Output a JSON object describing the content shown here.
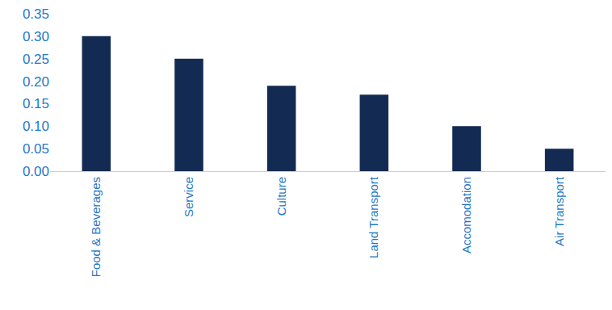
{
  "chart_data": {
    "type": "bar",
    "categories": [
      "Food & Beverages",
      "Service",
      "Culture",
      "Land Transport",
      "Accomodation",
      "Air Transport"
    ],
    "values": [
      0.3,
      0.25,
      0.19,
      0.17,
      0.1,
      0.05
    ],
    "color": "#132a52",
    "ylim": [
      0,
      0.35
    ],
    "yticks": [
      {
        "value": 0,
        "label": "0.00"
      },
      {
        "value": 0.05,
        "label": "0.05"
      },
      {
        "value": 0.1,
        "label": "0.10"
      },
      {
        "value": 0.15,
        "label": "0.15"
      },
      {
        "value": 0.2,
        "label": "0.20"
      },
      {
        "value": 0.25,
        "label": "0.25"
      },
      {
        "value": 0.3,
        "label": "0.30"
      },
      {
        "value": 0.35,
        "label": "0.35"
      }
    ],
    "grid": false
  }
}
